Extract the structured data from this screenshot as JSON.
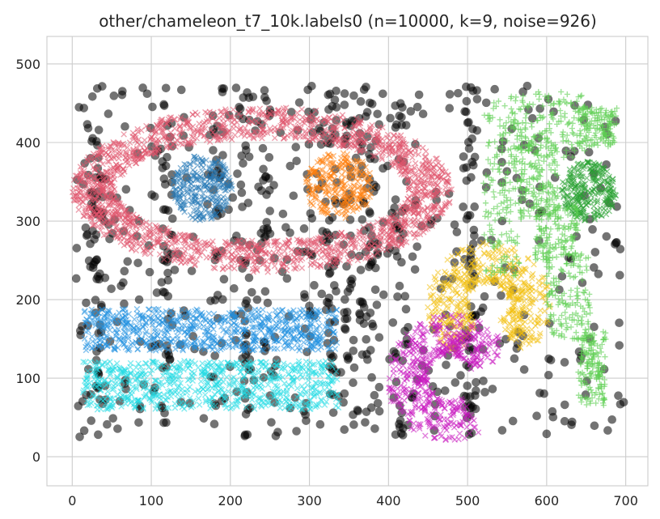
{
  "chart_data": {
    "type": "scatter",
    "title": "other/chameleon_t7_10k.labels0 (n=10000, k=9, noise=926)",
    "xlabel": "",
    "ylabel": "",
    "xlim": [
      -32,
      728
    ],
    "ylim": [
      -37,
      535
    ],
    "xticks": [
      0,
      100,
      200,
      300,
      400,
      500,
      600,
      700
    ],
    "yticks": [
      0,
      100,
      200,
      300,
      400,
      500
    ],
    "grid": true,
    "colors": {
      "noise": "#000000",
      "ring": "#e0536b",
      "blue_blob": "#2479b6",
      "orange_blob": "#ff7f0e",
      "green_blob": "#27a12f",
      "light_green_hook": "#5dcf52",
      "yellow_c": "#f2c00e",
      "magenta_c": "#c918c0",
      "azure_bar": "#1f8fe0",
      "cyan_bar": "#20dbe3"
    },
    "series": [
      {
        "kind": "noise",
        "color_key": "noise",
        "marker": "circle",
        "count": 926
      },
      {
        "kind": "ring",
        "color_key": "ring",
        "marker": "x",
        "cx": 240,
        "cy": 340,
        "rx_outer": 240,
        "ry_outer": 105,
        "rx_inner": 185,
        "ry_inner": 65
      },
      {
        "kind": "ellipse",
        "color_key": "blue_blob",
        "marker": "x",
        "cx": 165,
        "cy": 343,
        "rx": 38,
        "ry": 42
      },
      {
        "kind": "ellipse",
        "color_key": "orange_blob",
        "marker": "x",
        "cx": 338,
        "cy": 345,
        "rx": 43,
        "ry": 42
      },
      {
        "kind": "ellipse",
        "color_key": "green_blob",
        "marker": "x",
        "cx": 653,
        "cy": 338,
        "rx": 35,
        "ry": 38
      },
      {
        "kind": "rect",
        "color_key": "azure_bar",
        "marker": "x",
        "x0": 15,
        "x1": 335,
        "y0": 135,
        "y1": 188
      },
      {
        "kind": "rect",
        "color_key": "cyan_bar",
        "marker": "x",
        "x0": 12,
        "x1": 338,
        "y0": 60,
        "y1": 122
      },
      {
        "kind": "c_shape",
        "color_key": "yellow_c",
        "marker": "x",
        "cx": 527,
        "cy": 195,
        "r": 52,
        "w": 26,
        "start_deg": -60,
        "end_deg": 240
      },
      {
        "kind": "c_shape",
        "color_key": "magenta_c",
        "marker": "x",
        "cx": 478,
        "cy": 100,
        "r": 55,
        "w": 26,
        "start_deg": 20,
        "end_deg": 300
      },
      {
        "kind": "hook",
        "color_key": "light_green_hook",
        "marker": "plus"
      }
    ]
  }
}
